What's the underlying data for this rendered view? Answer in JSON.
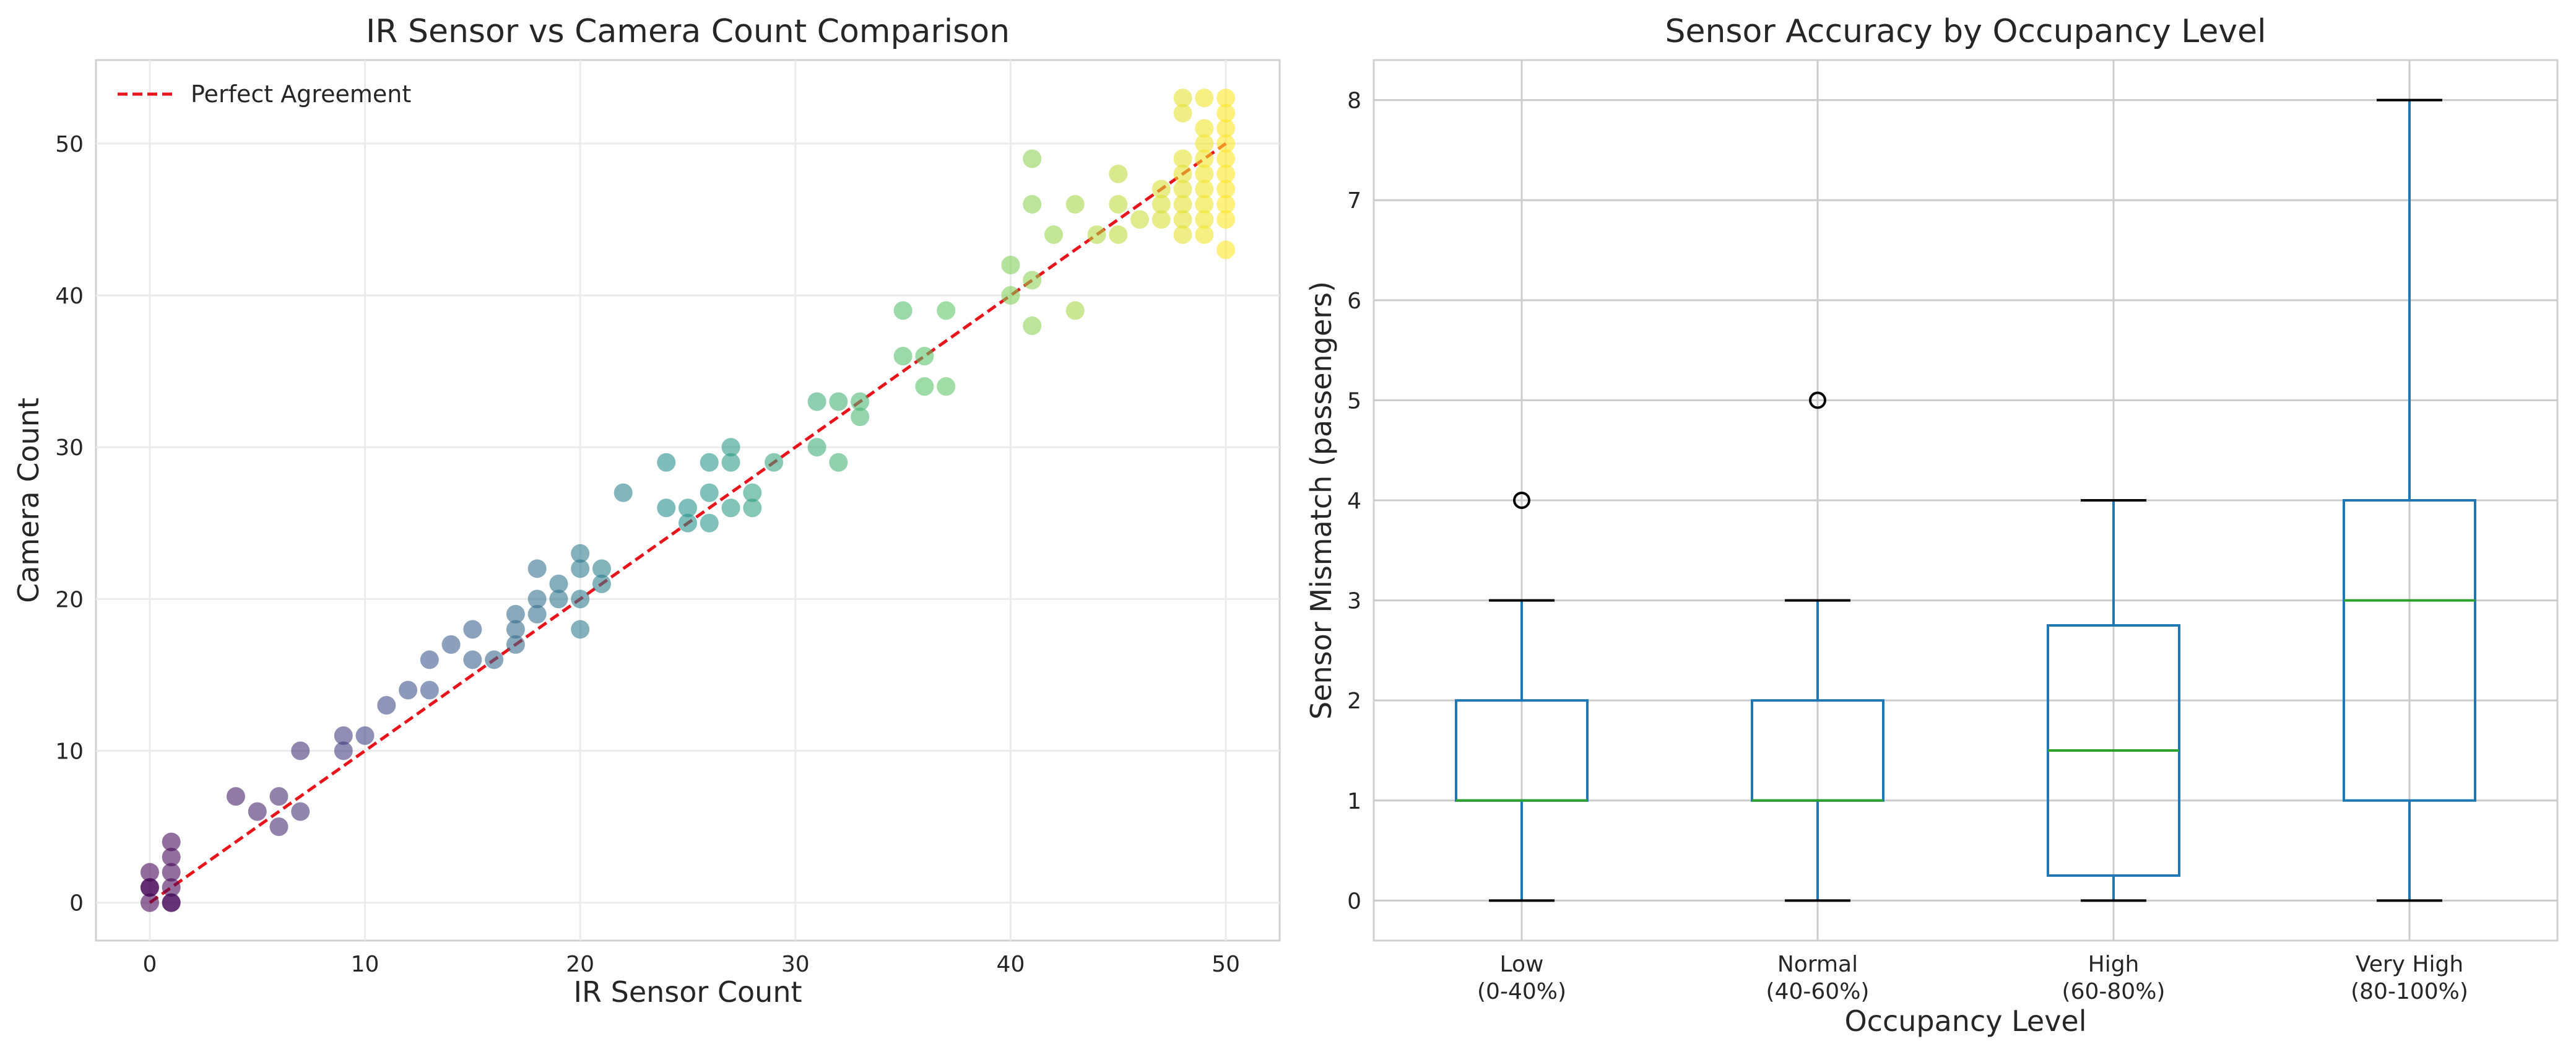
{
  "chart_data": [
    {
      "type": "scatter",
      "title": "IR Sensor vs Camera Count Comparison",
      "xlabel": "IR Sensor Count",
      "ylabel": "Camera Count",
      "xlim": [
        -2.5,
        52.5
      ],
      "ylim": [
        -2.5,
        55.5
      ],
      "xticks": [
        0,
        10,
        20,
        30,
        40,
        50
      ],
      "yticks": [
        0,
        10,
        20,
        30,
        40,
        50
      ],
      "grid": true,
      "legend": {
        "position": "upper-left",
        "entries": [
          "Perfect Agreement"
        ]
      },
      "reference_line": {
        "name": "Perfect Agreement",
        "color": "#e8141b",
        "style": "dashed",
        "points": [
          [
            0,
            0
          ],
          [
            50,
            50
          ]
        ]
      },
      "colormap": "viridis",
      "points": [
        [
          0,
          0
        ],
        [
          0,
          1
        ],
        [
          0,
          2
        ],
        [
          1,
          0
        ],
        [
          1,
          1
        ],
        [
          1,
          2
        ],
        [
          1,
          3
        ],
        [
          1,
          4
        ],
        [
          0,
          1
        ],
        [
          1,
          0
        ],
        [
          4,
          7
        ],
        [
          5,
          6
        ],
        [
          6,
          7
        ],
        [
          6,
          5
        ],
        [
          7,
          6
        ],
        [
          7,
          10
        ],
        [
          9,
          10
        ],
        [
          9,
          11
        ],
        [
          10,
          11
        ],
        [
          11,
          13
        ],
        [
          12,
          14
        ],
        [
          13,
          14
        ],
        [
          13,
          16
        ],
        [
          14,
          17
        ],
        [
          15,
          16
        ],
        [
          15,
          18
        ],
        [
          16,
          16
        ],
        [
          17,
          17
        ],
        [
          17,
          18
        ],
        [
          17,
          19
        ],
        [
          18,
          19
        ],
        [
          18,
          20
        ],
        [
          18,
          22
        ],
        [
          19,
          20
        ],
        [
          19,
          21
        ],
        [
          20,
          18
        ],
        [
          20,
          20
        ],
        [
          20,
          22
        ],
        [
          20,
          23
        ],
        [
          21,
          21
        ],
        [
          21,
          22
        ],
        [
          22,
          27
        ],
        [
          24,
          26
        ],
        [
          24,
          29
        ],
        [
          25,
          25
        ],
        [
          25,
          26
        ],
        [
          26,
          25
        ],
        [
          26,
          27
        ],
        [
          26,
          29
        ],
        [
          27,
          26
        ],
        [
          27,
          29
        ],
        [
          27,
          30
        ],
        [
          28,
          26
        ],
        [
          28,
          27
        ],
        [
          29,
          29
        ],
        [
          31,
          30
        ],
        [
          31,
          33
        ],
        [
          32,
          29
        ],
        [
          32,
          33
        ],
        [
          33,
          32
        ],
        [
          33,
          33
        ],
        [
          35,
          36
        ],
        [
          35,
          39
        ],
        [
          36,
          34
        ],
        [
          36,
          36
        ],
        [
          37,
          34
        ],
        [
          37,
          39
        ],
        [
          40,
          40
        ],
        [
          40,
          42
        ],
        [
          41,
          38
        ],
        [
          41,
          41
        ],
        [
          41,
          46
        ],
        [
          41,
          49
        ],
        [
          42,
          44
        ],
        [
          43,
          39
        ],
        [
          43,
          46
        ],
        [
          44,
          44
        ],
        [
          45,
          44
        ],
        [
          45,
          46
        ],
        [
          45,
          48
        ],
        [
          46,
          45
        ],
        [
          47,
          45
        ],
        [
          47,
          46
        ],
        [
          47,
          47
        ],
        [
          48,
          44
        ],
        [
          48,
          45
        ],
        [
          48,
          46
        ],
        [
          48,
          47
        ],
        [
          48,
          48
        ],
        [
          48,
          49
        ],
        [
          48,
          52
        ],
        [
          48,
          53
        ],
        [
          49,
          44
        ],
        [
          49,
          45
        ],
        [
          49,
          46
        ],
        [
          49,
          47
        ],
        [
          49,
          48
        ],
        [
          49,
          49
        ],
        [
          49,
          50
        ],
        [
          49,
          51
        ],
        [
          49,
          53
        ],
        [
          50,
          43
        ],
        [
          50,
          45
        ],
        [
          50,
          46
        ],
        [
          50,
          47
        ],
        [
          50,
          48
        ],
        [
          50,
          49
        ],
        [
          50,
          50
        ],
        [
          50,
          51
        ],
        [
          50,
          52
        ],
        [
          50,
          53
        ]
      ]
    },
    {
      "type": "box",
      "title": "Sensor Accuracy by Occupancy Level",
      "xlabel": "Occupancy Level",
      "ylabel": "Sensor Mismatch (passengers)",
      "ylim": [
        -0.4,
        8.4
      ],
      "yticks": [
        0,
        1,
        2,
        3,
        4,
        5,
        6,
        7,
        8
      ],
      "grid": true,
      "colors": {
        "box": "#1f77b4",
        "median": "#2ca02c",
        "whisker": "#000000"
      },
      "categories": [
        {
          "line1": "Low",
          "line2": "(0-40%)",
          "whisker_low": 0,
          "q1": 1,
          "median": 1,
          "q3": 2,
          "whisker_high": 3,
          "outliers": [
            4
          ]
        },
        {
          "line1": "Normal",
          "line2": "(40-60%)",
          "whisker_low": 0,
          "q1": 1,
          "median": 1,
          "q3": 2,
          "whisker_high": 3,
          "outliers": [
            5
          ]
        },
        {
          "line1": "High",
          "line2": "(60-80%)",
          "whisker_low": 0,
          "q1": 0.25,
          "median": 1.5,
          "q3": 2.75,
          "whisker_high": 4,
          "outliers": []
        },
        {
          "line1": "Very High",
          "line2": "(80-100%)",
          "whisker_low": 0,
          "q1": 1,
          "median": 3,
          "q3": 4,
          "whisker_high": 8,
          "outliers": []
        }
      ]
    }
  ]
}
